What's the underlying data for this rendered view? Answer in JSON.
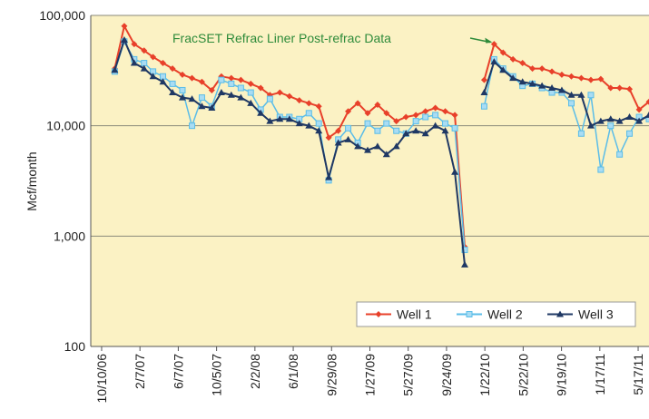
{
  "chart_data": {
    "type": "line",
    "ylabel": "Mcf/month",
    "annotation": "FracSET Refrac Liner Post-refrac Data",
    "yscale": "log",
    "grid": true,
    "legend": "lower right",
    "x": [
      "2006-11-20",
      "2006-12-20",
      "2007-01-20",
      "2007-02-20",
      "2007-03-20",
      "2007-04-20",
      "2007-05-20",
      "2007-06-20",
      "2007-07-20",
      "2007-08-20",
      "2007-09-20",
      "2007-10-20",
      "2007-11-20",
      "2007-12-20",
      "2008-01-20",
      "2008-02-20",
      "2008-03-20",
      "2008-04-20",
      "2008-05-20",
      "2008-06-20",
      "2008-07-20",
      "2008-08-20",
      "2008-09-20",
      "2008-10-20",
      "2008-11-20",
      "2008-12-20",
      "2009-01-20",
      "2009-02-20",
      "2009-03-20",
      "2009-04-20",
      "2009-05-20",
      "2009-06-20",
      "2009-07-20",
      "2009-08-20",
      "2009-09-20",
      "2009-10-20",
      "2009-11-20",
      "2009-12-20",
      "2010-01-20",
      "2010-02-20",
      "2010-03-20",
      "2010-04-20",
      "2010-05-20",
      "2010-06-20",
      "2010-07-20",
      "2010-08-20",
      "2010-09-20",
      "2010-10-20",
      "2010-11-20",
      "2010-12-20",
      "2011-01-20",
      "2011-02-20",
      "2011-03-20",
      "2011-04-20",
      "2011-05-20",
      "2011-06-20"
    ],
    "series": [
      {
        "name": "Well 1",
        "color": "#e8402a",
        "marker": "diamond",
        "values": [
          33000,
          80000,
          55000,
          48000,
          42000,
          37000,
          33000,
          29000,
          27000,
          25000,
          21000,
          28000,
          27000,
          26000,
          24000,
          22000,
          19000,
          20000,
          18500,
          17000,
          16000,
          15000,
          7800,
          9000,
          13500,
          16000,
          13000,
          15500,
          13000,
          11000,
          12000,
          12500,
          13500,
          14500,
          13500,
          12500,
          800,
          null,
          26000,
          55000,
          46000,
          40000,
          37000,
          33000,
          33000,
          31000,
          29000,
          28000,
          27000,
          26000,
          26500,
          22000,
          22000,
          21500,
          14000,
          16500
        ]
      },
      {
        "name": "Well 2",
        "color": "#5bbde8",
        "marker": "square",
        "values": [
          31000,
          58000,
          40000,
          37000,
          31000,
          28000,
          24000,
          21000,
          10000,
          18000,
          15000,
          26000,
          24000,
          22000,
          20000,
          14000,
          17500,
          12000,
          12000,
          11500,
          13000,
          10500,
          3200,
          7500,
          9500,
          7000,
          10500,
          9000,
          10500,
          9000,
          8500,
          11000,
          12000,
          12500,
          10500,
          9500,
          750,
          null,
          15000,
          40000,
          33000,
          28000,
          23000,
          24000,
          22000,
          20000,
          20000,
          16000,
          8500,
          19000,
          4000,
          10000,
          5500,
          8500,
          12000,
          11500
        ]
      },
      {
        "name": "Well 3",
        "color": "#1f3864",
        "marker": "triangle",
        "values": [
          32000,
          60000,
          37000,
          33000,
          28000,
          25000,
          20000,
          18000,
          17500,
          15000,
          14500,
          20000,
          19000,
          18000,
          16000,
          13000,
          11000,
          11500,
          11500,
          10500,
          10000,
          9000,
          3400,
          7000,
          7500,
          6500,
          6000,
          6500,
          5500,
          6500,
          8500,
          9000,
          8500,
          10000,
          9000,
          3800,
          550,
          null,
          20000,
          38000,
          32000,
          27000,
          25000,
          24000,
          23000,
          22000,
          21000,
          19000,
          19000,
          10000,
          11000,
          11500,
          11000,
          12000,
          11000,
          12500
        ]
      }
    ],
    "ylim": [
      100,
      100000
    ],
    "yticks": [
      100,
      {
        "value": 1000,
        "label": "1,000"
      },
      {
        "value": 10000,
        "label": "10,000"
      },
      {
        "value": 100000,
        "label": "100,000"
      }
    ],
    "xlim": [
      "2006-09-06",
      "2011-06-20"
    ],
    "xticks": [
      {
        "value": "2006-10-10",
        "label": "10/10/06"
      },
      {
        "value": "2007-02-07",
        "label": "2/7/07"
      },
      {
        "value": "2007-06-07",
        "label": "6/7/07"
      },
      {
        "value": "2007-10-05",
        "label": "10/5/07"
      },
      {
        "value": "2008-02-02",
        "label": "2/2/08"
      },
      {
        "value": "2008-06-01",
        "label": "6/1/08"
      },
      {
        "value": "2008-09-29",
        "label": "9/29/08"
      },
      {
        "value": "2009-01-27",
        "label": "1/27/09"
      },
      {
        "value": "2009-05-27",
        "label": "5/27/09"
      },
      {
        "value": "2009-09-24",
        "label": "9/24/09"
      },
      {
        "value": "2010-01-22",
        "label": "1/22/10"
      },
      {
        "value": "2010-05-22",
        "label": "5/22/10"
      },
      {
        "value": "2010-09-19",
        "label": "9/19/10"
      },
      {
        "value": "2011-01-17",
        "label": "1/17/11"
      },
      {
        "value": "2011-05-17",
        "label": "5/17/11"
      }
    ]
  }
}
